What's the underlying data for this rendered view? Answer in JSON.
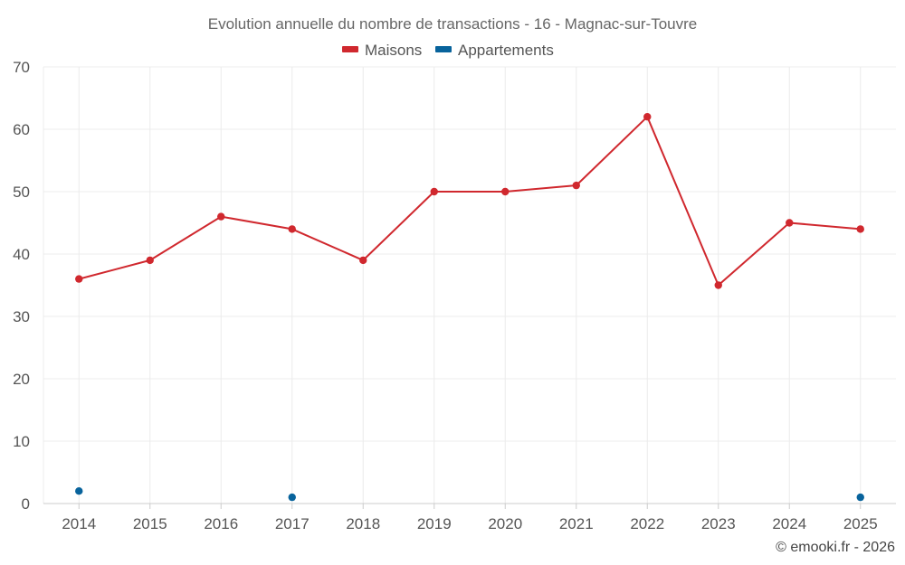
{
  "chart_data": {
    "type": "line",
    "title": "Evolution annuelle du nombre de transactions - 16 - Magnac-sur-Touvre",
    "categories": [
      "2014",
      "2015",
      "2016",
      "2017",
      "2018",
      "2019",
      "2020",
      "2021",
      "2022",
      "2023",
      "2024",
      "2025"
    ],
    "series": [
      {
        "name": "Maisons",
        "color": "#d0282e",
        "values": [
          36,
          39,
          46,
          44,
          39,
          50,
          50,
          51,
          62,
          35,
          45,
          44
        ],
        "line": true
      },
      {
        "name": "Appartements",
        "color": "#08639c",
        "values": [
          2,
          null,
          null,
          1,
          null,
          null,
          null,
          null,
          null,
          null,
          null,
          1
        ],
        "line": false
      }
    ],
    "ylim": [
      0,
      70
    ],
    "yticks": [
      0,
      10,
      20,
      30,
      40,
      50,
      60,
      70
    ],
    "xlabel": "",
    "ylabel": "",
    "grid": true,
    "legend": "top-center"
  },
  "credit": "© emooki.fr - 2026"
}
